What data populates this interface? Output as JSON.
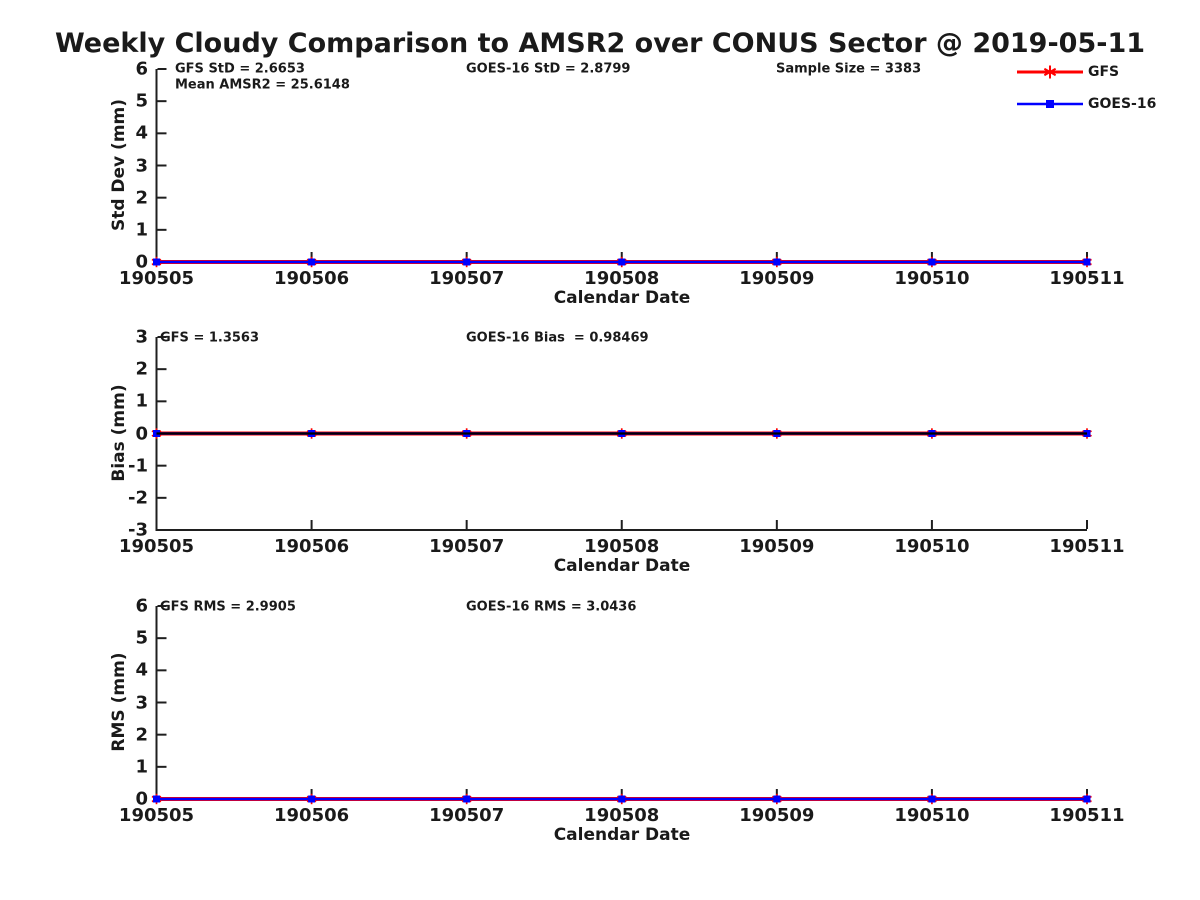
{
  "title": "Weekly Cloudy Comparison to AMSR2 over CONUS Sector @ 2019-05-11",
  "legend": {
    "position": "top-right",
    "items": [
      {
        "label": "GFS",
        "color": "#ff0000",
        "marker": "asterisk"
      },
      {
        "label": "GOES-16",
        "color": "#0000ff",
        "marker": "square"
      }
    ]
  },
  "chart_data": {
    "type": "line",
    "x_categories": [
      "190505",
      "190506",
      "190507",
      "190508",
      "190509",
      "190510",
      "190511"
    ],
    "panels": [
      {
        "id": "std-dev",
        "ylabel": "Std Dev (mm)",
        "xlabel": "Calendar Date",
        "ylim": [
          0,
          6
        ],
        "yticks": [
          0,
          1,
          2,
          3,
          4,
          5,
          6
        ],
        "annotations": [
          {
            "text": "GFS StD = 2.6653"
          },
          {
            "text": "Mean AMSR2 = 25.6148"
          },
          {
            "text": "GOES-16 StD = 2.8799"
          },
          {
            "text": "Sample Size = 3383"
          }
        ],
        "series": [
          {
            "name": "GFS",
            "color": "#ff0000",
            "marker": "asterisk",
            "values": [
              0,
              0,
              0,
              0,
              0,
              0,
              0
            ]
          },
          {
            "name": "GOES-16",
            "color": "#0000ff",
            "marker": "square",
            "values": [
              0,
              0,
              0,
              0,
              0,
              0,
              0
            ]
          }
        ],
        "zero_line": false
      },
      {
        "id": "bias",
        "ylabel": "Bias (mm)",
        "xlabel": "Calendar Date",
        "ylim": [
          -3,
          3
        ],
        "yticks": [
          -3,
          -2,
          -1,
          0,
          1,
          2,
          3
        ],
        "annotations": [
          {
            "text": "GFS = 1.3563"
          },
          {
            "text": "GOES-16 Bias  = 0.98469"
          }
        ],
        "series": [
          {
            "name": "GFS",
            "color": "#ff0000",
            "marker": "asterisk",
            "values": [
              0,
              0,
              0,
              0,
              0,
              0,
              0
            ]
          },
          {
            "name": "GOES-16",
            "color": "#0000ff",
            "marker": "square",
            "values": [
              0,
              0,
              0,
              0,
              0,
              0,
              0
            ]
          }
        ],
        "zero_line": true
      },
      {
        "id": "rms",
        "ylabel": "RMS (mm)",
        "xlabel": "Calendar Date",
        "ylim": [
          0,
          6
        ],
        "yticks": [
          0,
          1,
          2,
          3,
          4,
          5,
          6
        ],
        "annotations": [
          {
            "text": "GFS RMS = 2.9905"
          },
          {
            "text": "GOES-16 RMS = 3.0436"
          }
        ],
        "series": [
          {
            "name": "GFS",
            "color": "#ff0000",
            "marker": "asterisk",
            "values": [
              0,
              0,
              0,
              0,
              0,
              0,
              0
            ]
          },
          {
            "name": "GOES-16",
            "color": "#0000ff",
            "marker": "square",
            "values": [
              0,
              0,
              0,
              0,
              0,
              0,
              0
            ]
          }
        ],
        "zero_line": false
      }
    ]
  }
}
